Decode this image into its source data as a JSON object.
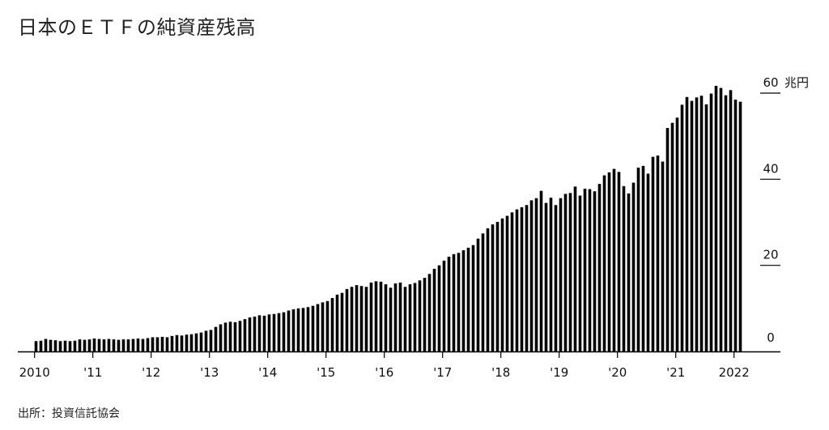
{
  "title": "日本のＥＴＦの純資産残高",
  "source": "出所：投資信託協会",
  "chart_data": {
    "type": "bar",
    "title": "日本のＥＴＦの純資産残高",
    "unit": "兆円",
    "ylim": [
      0,
      60
    ],
    "y_ticks": [
      {
        "value": 60,
        "label": "60"
      },
      {
        "value": 40,
        "label": "40"
      },
      {
        "value": 20,
        "label": "20"
      },
      {
        "value": 0,
        "label": "0"
      }
    ],
    "x_ticks": [
      {
        "index": 0,
        "label": "2010"
      },
      {
        "index": 12,
        "label": "'11"
      },
      {
        "index": 24,
        "label": "'12"
      },
      {
        "index": 36,
        "label": "'13"
      },
      {
        "index": 48,
        "label": "'14"
      },
      {
        "index": 60,
        "label": "'15"
      },
      {
        "index": 72,
        "label": "'16"
      },
      {
        "index": 84,
        "label": "'17"
      },
      {
        "index": 96,
        "label": "'18"
      },
      {
        "index": 108,
        "label": "'19"
      },
      {
        "index": 120,
        "label": "'20"
      },
      {
        "index": 132,
        "label": "'21"
      },
      {
        "index": 144,
        "label": "2022"
      }
    ],
    "series": [
      {
        "values": [
          2.4,
          2.5,
          2.9,
          2.7,
          2.6,
          2.4,
          2.5,
          2.4,
          2.5,
          2.8,
          2.7,
          2.8,
          3.0,
          2.9,
          2.8,
          2.9,
          2.8,
          2.7,
          2.8,
          2.8,
          2.9,
          3.0,
          2.9,
          3.1,
          3.3,
          3.3,
          3.4,
          3.3,
          3.6,
          3.8,
          3.7,
          3.9,
          4.0,
          4.2,
          4.4,
          4.8,
          5.0,
          5.7,
          6.3,
          6.7,
          6.9,
          6.8,
          7.1,
          7.5,
          7.9,
          8.1,
          8.4,
          8.3,
          8.6,
          8.7,
          8.9,
          9.1,
          9.5,
          9.8,
          10.0,
          10.1,
          10.3,
          10.6,
          11.0,
          11.4,
          11.7,
          12.4,
          13.2,
          13.6,
          14.5,
          15.0,
          15.4,
          15.2,
          15.0,
          16.0,
          16.3,
          16.2,
          15.6,
          14.8,
          15.8,
          16.0,
          15.0,
          15.6,
          15.9,
          16.5,
          17.1,
          18.0,
          19.2,
          20.0,
          21.1,
          22.0,
          22.6,
          22.9,
          23.5,
          24.1,
          24.7,
          26.2,
          27.4,
          28.6,
          29.5,
          30.1,
          30.9,
          31.5,
          32.3,
          33.0,
          33.5,
          34.0,
          35.1,
          35.6,
          37.3,
          34.5,
          35.7,
          34.0,
          35.6,
          36.6,
          36.8,
          38.3,
          36.2,
          37.8,
          37.7,
          37.2,
          38.9,
          40.9,
          41.6,
          42.4,
          41.7,
          38.4,
          36.7,
          39.2,
          42.7,
          43.1,
          41.3,
          45.2,
          45.5,
          44.1,
          51.9,
          53.1,
          54.3,
          57.3,
          59.1,
          58.2,
          59.0,
          59.4,
          57.4,
          59.9,
          61.7,
          61.2,
          59.5,
          60.7,
          58.5,
          58.0
        ]
      }
    ]
  }
}
